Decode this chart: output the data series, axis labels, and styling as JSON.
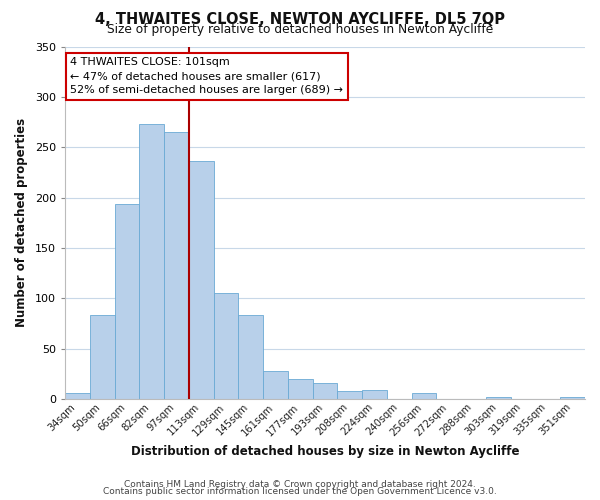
{
  "title": "4, THWAITES CLOSE, NEWTON AYCLIFFE, DL5 7QP",
  "subtitle": "Size of property relative to detached houses in Newton Aycliffe",
  "xlabel": "Distribution of detached houses by size in Newton Aycliffe",
  "ylabel": "Number of detached properties",
  "categories": [
    "34sqm",
    "50sqm",
    "66sqm",
    "82sqm",
    "97sqm",
    "113sqm",
    "129sqm",
    "145sqm",
    "161sqm",
    "177sqm",
    "193sqm",
    "208sqm",
    "224sqm",
    "240sqm",
    "256sqm",
    "272sqm",
    "288sqm",
    "303sqm",
    "319sqm",
    "335sqm",
    "351sqm"
  ],
  "values": [
    6,
    84,
    194,
    273,
    265,
    236,
    105,
    84,
    28,
    20,
    16,
    8,
    9,
    0,
    6,
    0,
    0,
    2,
    0,
    0,
    2
  ],
  "bar_color": "#b8d0ea",
  "bar_edge_color": "#6aaad4",
  "vline_color": "#aa0000",
  "annotation_text": "4 THWAITES CLOSE: 101sqm\n← 47% of detached houses are smaller (617)\n52% of semi-detached houses are larger (689) →",
  "annotation_box_color": "#ffffff",
  "annotation_box_edge_color": "#cc0000",
  "ylim": [
    0,
    350
  ],
  "yticks": [
    0,
    50,
    100,
    150,
    200,
    250,
    300,
    350
  ],
  "footer1": "Contains HM Land Registry data © Crown copyright and database right 2024.",
  "footer2": "Contains public sector information licensed under the Open Government Licence v3.0.",
  "background_color": "#ffffff",
  "grid_color": "#c8d8e8"
}
